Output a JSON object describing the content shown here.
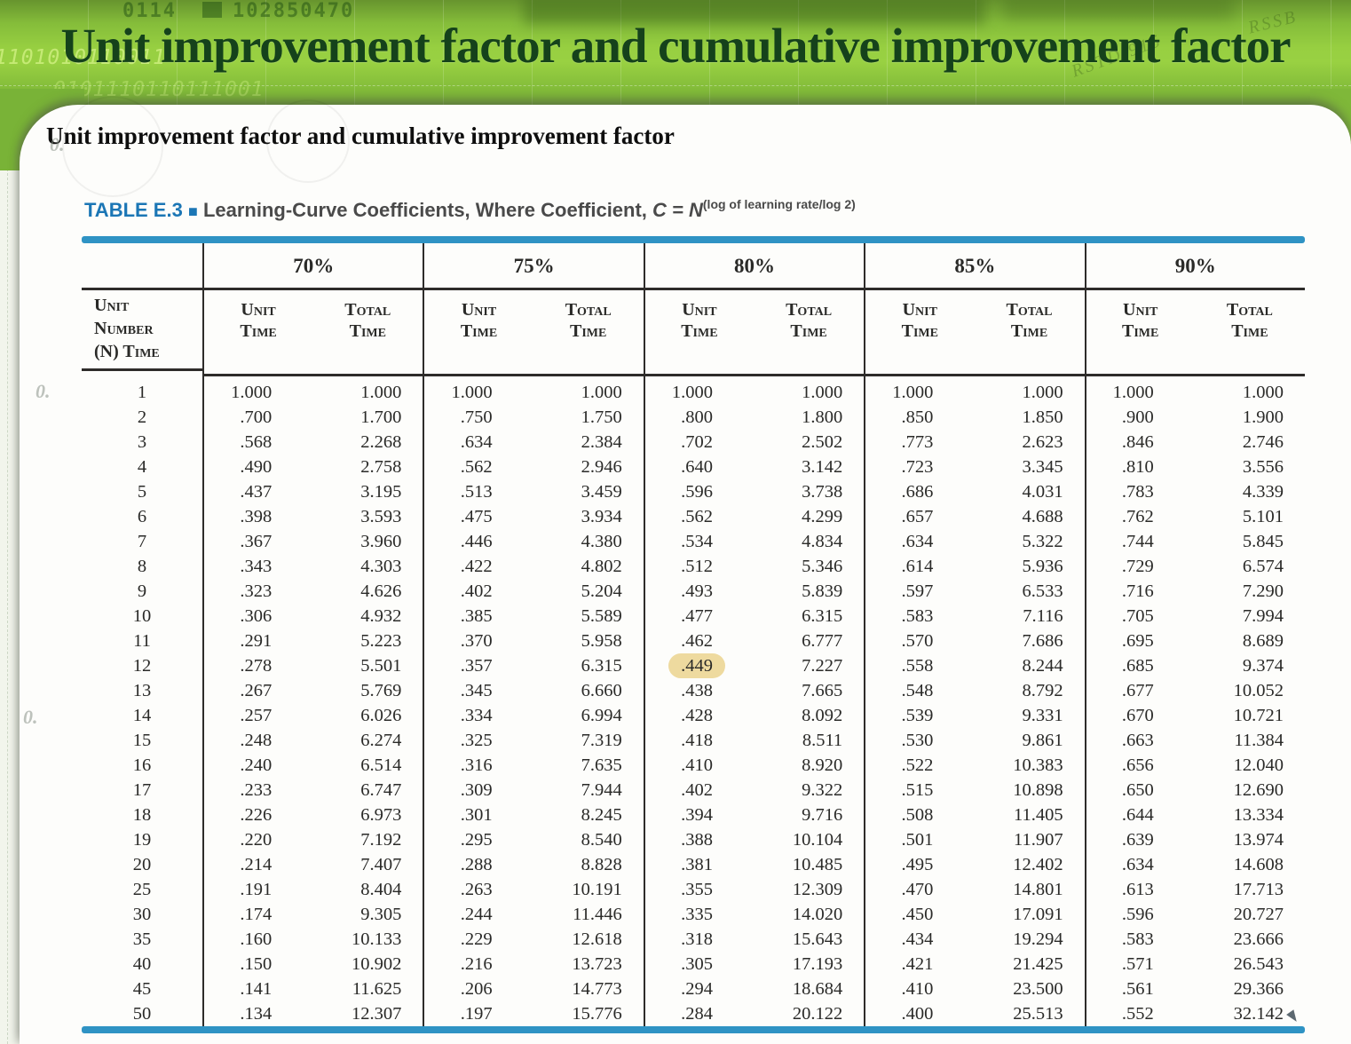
{
  "slide": {
    "title": "Unit improvement factor and cumulative improvement factor",
    "subtitle": "Unit improvement factor and cumulative improvement factor"
  },
  "decor": {
    "digits_left": "0114",
    "digits_right": "102850470",
    "binary_left": "1101010110011",
    "binary_left2": "0101110110111001",
    "scribble_right": "RSSB",
    "scribble_right2": "RSTD 915",
    "margin_marks": [
      "0.",
      "0.",
      "0."
    ]
  },
  "table": {
    "caption_label": "TABLE E.3",
    "caption_separator": "■",
    "caption_text_before_c": "Learning-Curve Coefficients, Where Coefficient, ",
    "caption_equation": "C = N",
    "caption_exponent": "(log of learning rate/log 2)",
    "corner_header_lines": [
      "Unit",
      "Number",
      "(N) Time"
    ],
    "groups": [
      "70%",
      "75%",
      "80%",
      "85%",
      "90%"
    ],
    "sub_headers": [
      "Unit Time",
      "Total Time"
    ],
    "highlight": {
      "row_n": "12",
      "value_index": 4
    },
    "rows": [
      [
        "1",
        "1.000",
        "1.000",
        "1.000",
        "1.000",
        "1.000",
        "1.000",
        "1.000",
        "1.000",
        "1.000",
        "1.000"
      ],
      [
        "2",
        ".700",
        "1.700",
        ".750",
        "1.750",
        ".800",
        "1.800",
        ".850",
        "1.850",
        ".900",
        "1.900"
      ],
      [
        "3",
        ".568",
        "2.268",
        ".634",
        "2.384",
        ".702",
        "2.502",
        ".773",
        "2.623",
        ".846",
        "2.746"
      ],
      [
        "4",
        ".490",
        "2.758",
        ".562",
        "2.946",
        ".640",
        "3.142",
        ".723",
        "3.345",
        ".810",
        "3.556"
      ],
      [
        "5",
        ".437",
        "3.195",
        ".513",
        "3.459",
        ".596",
        "3.738",
        ".686",
        "4.031",
        ".783",
        "4.339"
      ],
      [
        "6",
        ".398",
        "3.593",
        ".475",
        "3.934",
        ".562",
        "4.299",
        ".657",
        "4.688",
        ".762",
        "5.101"
      ],
      [
        "7",
        ".367",
        "3.960",
        ".446",
        "4.380",
        ".534",
        "4.834",
        ".634",
        "5.322",
        ".744",
        "5.845"
      ],
      [
        "8",
        ".343",
        "4.303",
        ".422",
        "4.802",
        ".512",
        "5.346",
        ".614",
        "5.936",
        ".729",
        "6.574"
      ],
      [
        "9",
        ".323",
        "4.626",
        ".402",
        "5.204",
        ".493",
        "5.839",
        ".597",
        "6.533",
        ".716",
        "7.290"
      ],
      [
        "10",
        ".306",
        "4.932",
        ".385",
        "5.589",
        ".477",
        "6.315",
        ".583",
        "7.116",
        ".705",
        "7.994"
      ],
      [
        "11",
        ".291",
        "5.223",
        ".370",
        "5.958",
        ".462",
        "6.777",
        ".570",
        "7.686",
        ".695",
        "8.689"
      ],
      [
        "12",
        ".278",
        "5.501",
        ".357",
        "6.315",
        ".449",
        "7.227",
        ".558",
        "8.244",
        ".685",
        "9.374"
      ],
      [
        "13",
        ".267",
        "5.769",
        ".345",
        "6.660",
        ".438",
        "7.665",
        ".548",
        "8.792",
        ".677",
        "10.052"
      ],
      [
        "14",
        ".257",
        "6.026",
        ".334",
        "6.994",
        ".428",
        "8.092",
        ".539",
        "9.331",
        ".670",
        "10.721"
      ],
      [
        "15",
        ".248",
        "6.274",
        ".325",
        "7.319",
        ".418",
        "8.511",
        ".530",
        "9.861",
        ".663",
        "11.384"
      ],
      [
        "16",
        ".240",
        "6.514",
        ".316",
        "7.635",
        ".410",
        "8.920",
        ".522",
        "10.383",
        ".656",
        "12.040"
      ],
      [
        "17",
        ".233",
        "6.747",
        ".309",
        "7.944",
        ".402",
        "9.322",
        ".515",
        "10.898",
        ".650",
        "12.690"
      ],
      [
        "18",
        ".226",
        "6.973",
        ".301",
        "8.245",
        ".394",
        "9.716",
        ".508",
        "11.405",
        ".644",
        "13.334"
      ],
      [
        "19",
        ".220",
        "7.192",
        ".295",
        "8.540",
        ".388",
        "10.104",
        ".501",
        "11.907",
        ".639",
        "13.974"
      ],
      [
        "20",
        ".214",
        "7.407",
        ".288",
        "8.828",
        ".381",
        "10.485",
        ".495",
        "12.402",
        ".634",
        "14.608"
      ],
      [
        "25",
        ".191",
        "8.404",
        ".263",
        "10.191",
        ".355",
        "12.309",
        ".470",
        "14.801",
        ".613",
        "17.713"
      ],
      [
        "30",
        ".174",
        "9.305",
        ".244",
        "11.446",
        ".335",
        "14.020",
        ".450",
        "17.091",
        ".596",
        "20.727"
      ],
      [
        "35",
        ".160",
        "10.133",
        ".229",
        "12.618",
        ".318",
        "15.643",
        ".434",
        "19.294",
        ".583",
        "23.666"
      ],
      [
        "40",
        ".150",
        "10.902",
        ".216",
        "13.723",
        ".305",
        "17.193",
        ".421",
        "21.425",
        ".571",
        "26.543"
      ],
      [
        "45",
        ".141",
        "11.625",
        ".206",
        "14.773",
        ".294",
        "18.684",
        ".410",
        "23.500",
        ".561",
        "29.366"
      ],
      [
        "50",
        ".134",
        "12.307",
        ".197",
        "15.776",
        ".284",
        "20.122",
        ".400",
        "25.513",
        ".552",
        "32.142"
      ]
    ]
  }
}
